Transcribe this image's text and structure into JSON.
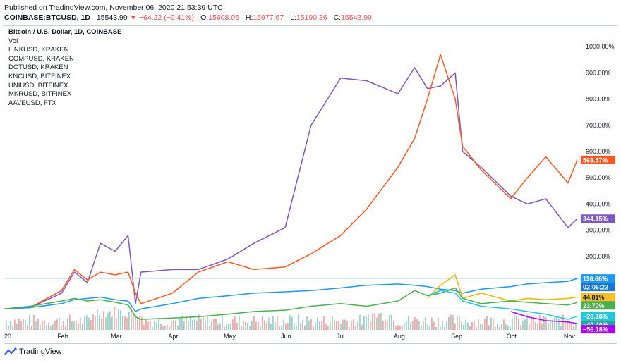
{
  "published": "Published on TradingView.com, November 06, 2020 21:53:39 UTC",
  "header": {
    "symbol": "COINBASE:BTCUSD, 1D",
    "price": "15543.99",
    "change": "−64.22 (−0.41%)",
    "o_label": "O:",
    "o": "15608.06",
    "h_label": "H:",
    "h": "15977.67",
    "l_label": "L:",
    "l": "15190.36",
    "c_label": "C:",
    "c": "15543.99"
  },
  "legend": {
    "main": "Bitcoin / U.S. Dollar, 1D, COINBASE",
    "items": [
      "Vol",
      "LINKUSD, KRAKEN",
      "COMPUSD, KRAKEN",
      "DOTUSD, KRAKEN",
      "KNCUSD, BITFINEX",
      "UNIUSD, BITFINEX",
      "MKRUSD, BITFINEX",
      "AAVEUSD, FTX"
    ]
  },
  "brand": "TradingView",
  "chart_data": {
    "type": "line",
    "x_ticks": [
      "20",
      "Feb",
      "Mar",
      "Apr",
      "May",
      "Jun",
      "Jul",
      "Aug",
      "Sep",
      "Oct",
      "Nov"
    ],
    "y_ticks": [
      "1000.00%",
      "900.00%",
      "800.00%",
      "700.00%",
      "600.00%",
      "500.00%",
      "400.00%",
      "300.00%",
      "200.00%"
    ],
    "ylim": [
      -80,
      1030
    ],
    "y_unit": "%",
    "grid": false,
    "x": [
      "2020-01-01",
      "2020-01-15",
      "2020-02-01",
      "2020-02-08",
      "2020-02-15",
      "2020-02-22",
      "2020-03-01",
      "2020-03-08",
      "2020-03-12",
      "2020-03-15",
      "2020-04-01",
      "2020-04-15",
      "2020-05-01",
      "2020-05-15",
      "2020-06-01",
      "2020-06-15",
      "2020-07-01",
      "2020-07-15",
      "2020-08-01",
      "2020-08-10",
      "2020-08-17",
      "2020-08-24",
      "2020-09-01",
      "2020-09-05",
      "2020-09-15",
      "2020-10-01",
      "2020-10-10",
      "2020-10-20",
      "2020-11-01",
      "2020-11-06"
    ],
    "series": [
      {
        "color": "#7e57c2",
        "label_color": "#7e57c2",
        "badge": "344.15%",
        "values": [
          0,
          5,
          60,
          140,
          100,
          250,
          220,
          280,
          20,
          140,
          150,
          150,
          190,
          250,
          310,
          700,
          880,
          870,
          820,
          920,
          840,
          850,
          900,
          600,
          540,
          430,
          400,
          420,
          310,
          344
        ]
      },
      {
        "color": "#ff5722",
        "label_color": "#ff5722",
        "badge": "568.57%",
        "values": [
          0,
          5,
          70,
          150,
          110,
          140,
          130,
          140,
          60,
          20,
          60,
          140,
          180,
          150,
          160,
          210,
          280,
          380,
          540,
          650,
          800,
          970,
          800,
          620,
          530,
          420,
          500,
          580,
          480,
          568
        ]
      },
      {
        "color": "#2196f3",
        "label_color": "#2196f3",
        "badge": "116.66%",
        "values": [
          0,
          5,
          20,
          35,
          40,
          45,
          35,
          30,
          -10,
          0,
          20,
          40,
          50,
          60,
          65,
          70,
          80,
          90,
          95,
          90,
          85,
          75,
          70,
          60,
          75,
          85,
          95,
          100,
          105,
          116
        ]
      },
      {
        "color": "#1976d2",
        "label_color": "#1976d2",
        "badge": "02:06:22",
        "values": null
      },
      {
        "color": "#e6b800",
        "label_color": "#f6c026",
        "badge": "44.81%",
        "values": [
          null,
          null,
          null,
          null,
          null,
          null,
          null,
          null,
          null,
          null,
          null,
          null,
          null,
          null,
          null,
          null,
          null,
          null,
          null,
          null,
          40,
          90,
          130,
          40,
          60,
          30,
          40,
          35,
          40,
          45
        ]
      },
      {
        "color": "#4caf50",
        "label_color": "#4caf50",
        "badge": "23.70%",
        "values": [
          0,
          10,
          30,
          40,
          30,
          35,
          25,
          15,
          -30,
          -40,
          -35,
          -30,
          -20,
          -10,
          -5,
          10,
          20,
          10,
          30,
          70,
          50,
          60,
          80,
          40,
          20,
          30,
          25,
          20,
          15,
          24
        ]
      },
      {
        "color": "#26c6da",
        "label_color": "#26c6da",
        "badge": "−28.18%",
        "values": [
          null,
          null,
          null,
          null,
          null,
          null,
          null,
          null,
          null,
          null,
          null,
          null,
          null,
          null,
          null,
          null,
          null,
          null,
          null,
          null,
          50,
          70,
          60,
          30,
          10,
          0,
          -10,
          -20,
          -40,
          -28
        ]
      },
      {
        "color": "#26a69a",
        "label_color": "#26a69a",
        "badge": "−40.40%",
        "values": null
      },
      {
        "color": "#aa00ff",
        "label_color": "#aa00ff",
        "badge": "−56.18%",
        "values": [
          null,
          null,
          null,
          null,
          null,
          null,
          null,
          null,
          null,
          null,
          null,
          null,
          null,
          null,
          null,
          null,
          null,
          null,
          null,
          null,
          null,
          null,
          null,
          null,
          null,
          -10,
          -30,
          -45,
          -50,
          -56
        ]
      }
    ],
    "volume": {
      "note": "volume histogram",
      "colors": [
        "#26a69a",
        "#ef5350"
      ]
    }
  }
}
